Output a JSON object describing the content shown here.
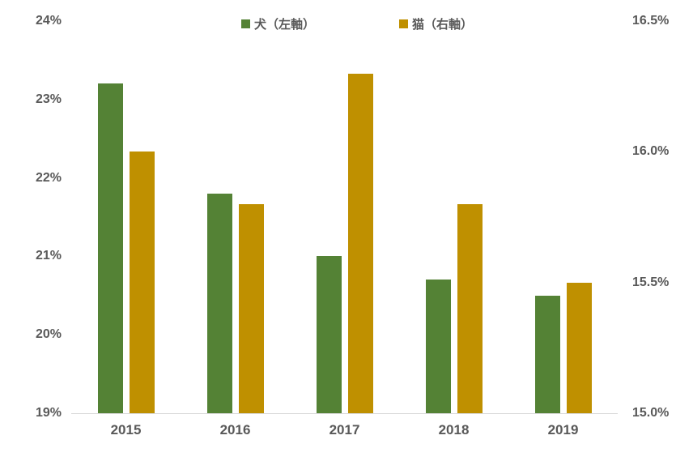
{
  "chart_data": {
    "type": "bar",
    "title": "",
    "categories": [
      "2015",
      "2016",
      "2017",
      "2018",
      "2019"
    ],
    "series": [
      {
        "name": "犬（左軸）",
        "axis": "left",
        "color": "#548235",
        "values": [
          23.2,
          21.8,
          21.0,
          20.7,
          20.5
        ]
      },
      {
        "name": "猫（右軸）",
        "axis": "right",
        "color": "#BF9000",
        "values": [
          16.0,
          15.8,
          16.3,
          15.8,
          15.5
        ]
      }
    ],
    "axes": {
      "left": {
        "min": 19,
        "max": 24,
        "ticks": [
          {
            "label": "19%",
            "value": 19
          },
          {
            "label": "20%",
            "value": 20
          },
          {
            "label": "21%",
            "value": 21
          },
          {
            "label": "22%",
            "value": 22
          },
          {
            "label": "23%",
            "value": 23
          },
          {
            "label": "24%",
            "value": 24
          }
        ]
      },
      "right": {
        "min": 15.0,
        "max": 16.5,
        "ticks": [
          {
            "label": "15.0%",
            "value": 15.0
          },
          {
            "label": "15.5%",
            "value": 15.5
          },
          {
            "label": "16.0%",
            "value": 16.0
          },
          {
            "label": "16.5%",
            "value": 16.5
          }
        ]
      }
    },
    "legend_position": "top",
    "grid": false
  },
  "colors": {
    "text": "#595959",
    "axis_line": "#D9D9D9",
    "background": "#FFFFFF"
  }
}
